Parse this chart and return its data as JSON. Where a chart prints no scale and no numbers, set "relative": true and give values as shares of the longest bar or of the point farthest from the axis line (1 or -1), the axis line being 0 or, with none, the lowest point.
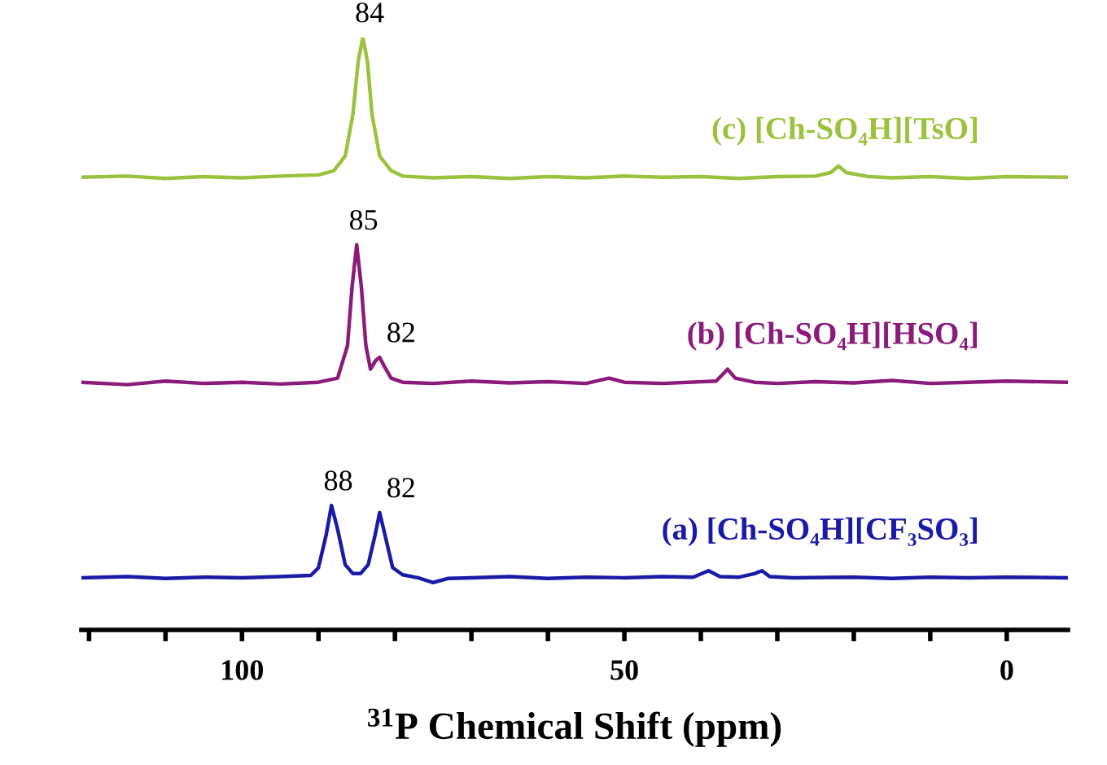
{
  "chart_data": {
    "type": "line",
    "relative": true,
    "xlabel": "$^{31}$P Chemical Shift (ppm)",
    "xlim": [
      121,
      -8
    ],
    "xticks": [
      {
        "value": 120,
        "label": null
      },
      {
        "value": 110,
        "label": null
      },
      100,
      {
        "value": 90,
        "label": null
      },
      {
        "value": 80,
        "label": null
      },
      {
        "value": 70,
        "label": null
      },
      {
        "value": 60,
        "label": null
      },
      50,
      {
        "value": 40,
        "label": null
      },
      {
        "value": 30,
        "label": null
      },
      {
        "value": 20,
        "label": null
      },
      {
        "value": 10,
        "label": null
      },
      0
    ],
    "series": [
      {
        "name": "(a) [Ch-SO₄H][CF₃SO₃]",
        "color": "#1a1aa8",
        "x": [
          121,
          115,
          110,
          105,
          100,
          95,
          91,
          90,
          89,
          88.3,
          87.5,
          86.5,
          85.5,
          84.5,
          83.5,
          82.6,
          82,
          81.3,
          80.3,
          79,
          77,
          75,
          73,
          70,
          65,
          60,
          55,
          50,
          45,
          41,
          39,
          37.5,
          35,
          33,
          32,
          31,
          28,
          20,
          15,
          10,
          5,
          0,
          -8
        ],
        "values": [
          0.088,
          0.09,
          0.087,
          0.089,
          0.088,
          0.09,
          0.092,
          0.105,
          0.16,
          0.21,
          0.17,
          0.11,
          0.095,
          0.095,
          0.11,
          0.16,
          0.198,
          0.16,
          0.105,
          0.093,
          0.088,
          0.08,
          0.087,
          0.088,
          0.09,
          0.087,
          0.089,
          0.088,
          0.09,
          0.089,
          0.1,
          0.09,
          0.089,
          0.095,
          0.1,
          0.09,
          0.088,
          0.089,
          0.087,
          0.089,
          0.088,
          0.089,
          0.088
        ]
      },
      {
        "name": "(b) [Ch-SO₄H][HSO₄]",
        "color": "#8b1a7a",
        "x": [
          121,
          115,
          110,
          105,
          100,
          95,
          90,
          87.5,
          86.2,
          85.6,
          85,
          84.4,
          83.8,
          83.2,
          82.5,
          82,
          81.4,
          80.5,
          79,
          75,
          70,
          65,
          60,
          55,
          52,
          50,
          45,
          38,
          36.5,
          35.5,
          33,
          30,
          25,
          20,
          15,
          10,
          5,
          0,
          -8
        ],
        "values": [
          0.418,
          0.414,
          0.42,
          0.416,
          0.418,
          0.415,
          0.418,
          0.425,
          0.48,
          0.58,
          0.65,
          0.58,
          0.48,
          0.44,
          0.455,
          0.46,
          0.445,
          0.425,
          0.418,
          0.416,
          0.42,
          0.417,
          0.419,
          0.416,
          0.425,
          0.418,
          0.416,
          0.42,
          0.44,
          0.425,
          0.418,
          0.416,
          0.419,
          0.417,
          0.421,
          0.416,
          0.418,
          0.42,
          0.418
        ]
      },
      {
        "name": "(c) [Ch-SO₄H][TsO]",
        "color": "#9bc23c",
        "x": [
          121,
          115,
          110,
          105,
          100,
          95,
          90,
          88,
          86.5,
          85.5,
          84.8,
          84.2,
          83.6,
          83,
          82,
          80.5,
          79,
          75,
          70,
          65,
          60,
          55,
          50,
          45,
          40,
          35,
          30,
          25,
          23,
          22,
          21,
          18,
          15,
          10,
          5,
          0,
          -8
        ],
        "values": [
          0.764,
          0.766,
          0.762,
          0.765,
          0.763,
          0.766,
          0.768,
          0.775,
          0.8,
          0.87,
          0.96,
          1.0,
          0.96,
          0.87,
          0.8,
          0.775,
          0.766,
          0.763,
          0.765,
          0.762,
          0.765,
          0.763,
          0.766,
          0.764,
          0.765,
          0.762,
          0.765,
          0.766,
          0.772,
          0.783,
          0.772,
          0.765,
          0.763,
          0.765,
          0.762,
          0.765,
          0.764
        ]
      }
    ],
    "annotations": [
      {
        "text": "84",
        "x": 84.2,
        "y": 1.0
      },
      {
        "text": "85",
        "x": 85,
        "y": 0.65
      },
      {
        "text": "82",
        "x": 82,
        "y": 0.46
      },
      {
        "text": "88",
        "x": 88.3,
        "y": 0.21
      },
      {
        "text": "82",
        "x": 82,
        "y": 0.198
      }
    ]
  }
}
